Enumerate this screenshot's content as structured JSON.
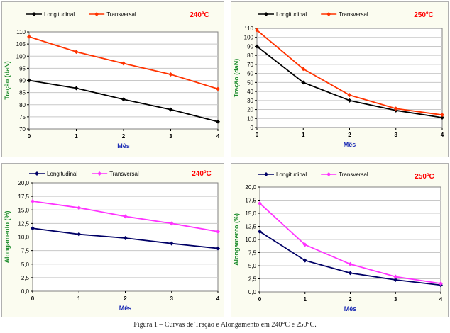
{
  "caption": "Figura 1 – Curvas de Tração e Alongamento em 240°C e 250°C.",
  "chart_data": [
    {
      "type": "line",
      "title": "240ºC",
      "xlabel": "Mês",
      "ylabel": "Tração (daN)",
      "x": [
        0,
        1,
        2,
        3,
        4
      ],
      "ylim": [
        70,
        110
      ],
      "ytick_step": 5,
      "ytick_labels": [
        "70",
        "75",
        "80",
        "85",
        "90",
        "95",
        "100",
        "105",
        "110"
      ],
      "xtick_labels": [
        "0",
        "1",
        "2",
        "3",
        "4"
      ],
      "grid": true,
      "legend": "top-left",
      "series": [
        {
          "name": "Longitudinal",
          "values": [
            90,
            86.8,
            82.2,
            78,
            73
          ],
          "color": "#000000",
          "marker": "diamond"
        },
        {
          "name": "Transversal",
          "values": [
            108,
            101.8,
            97,
            92.5,
            86.5
          ],
          "color": "#ff3300",
          "marker": "diamond"
        }
      ]
    },
    {
      "type": "line",
      "title": "250ºC",
      "xlabel": "Mês",
      "ylabel": "Tração (daN)",
      "x": [
        0,
        1,
        2,
        3,
        4
      ],
      "ylim": [
        0,
        110
      ],
      "ytick_step": 10,
      "ytick_labels": [
        "0",
        "10",
        "20",
        "30",
        "40",
        "50",
        "60",
        "70",
        "80",
        "90",
        "100",
        "110"
      ],
      "xtick_labels": [
        "0",
        "1",
        "2",
        "3",
        "4"
      ],
      "grid": true,
      "legend": "top-left",
      "series": [
        {
          "name": "Longitudinal",
          "values": [
            90,
            50,
            30,
            19,
            11
          ],
          "color": "#000000",
          "marker": "diamond"
        },
        {
          "name": "Transversal",
          "values": [
            108,
            65,
            36,
            21,
            14
          ],
          "color": "#ff3300",
          "marker": "diamond"
        }
      ]
    },
    {
      "type": "line",
      "title": "240ºC",
      "xlabel": "Mês",
      "ylabel": "Alongamento (%)",
      "x": [
        0,
        1,
        2,
        3,
        4
      ],
      "ylim": [
        0,
        20
      ],
      "ytick_step": 2.5,
      "ytick_labels": [
        "0,0",
        "2,5",
        "5,0",
        "7,5",
        "10,0",
        "12,5",
        "15,0",
        "17,5",
        "20,0"
      ],
      "xtick_labels": [
        "0",
        "1",
        "2",
        "3",
        "4"
      ],
      "grid": true,
      "legend": "top-left",
      "series": [
        {
          "name": "Longitudinal",
          "values": [
            11.6,
            10.5,
            9.8,
            8.8,
            7.9
          ],
          "color": "#000066",
          "marker": "diamond"
        },
        {
          "name": "Transversal",
          "values": [
            16.6,
            15.4,
            13.8,
            12.5,
            11
          ],
          "color": "#ff33ff",
          "marker": "diamond"
        }
      ]
    },
    {
      "type": "line",
      "title": "250ºC",
      "xlabel": "Mês",
      "ylabel": "Alongamento (%)",
      "x": [
        0,
        1,
        2,
        3,
        4
      ],
      "ylim": [
        0,
        20
      ],
      "ytick_step": 2.5,
      "ytick_labels": [
        "0,0",
        "2,5",
        "5,0",
        "7,5",
        "10,0",
        "12,5",
        "15,0",
        "17,5",
        "20,0"
      ],
      "xtick_labels": [
        "0",
        "1",
        "2",
        "3",
        "4"
      ],
      "grid": true,
      "legend": "top-left",
      "series": [
        {
          "name": "Longitudinal",
          "values": [
            11.5,
            6,
            3.6,
            2.3,
            1.3
          ],
          "color": "#000066",
          "marker": "diamond"
        },
        {
          "name": "Transversal",
          "values": [
            16.9,
            9,
            5.3,
            2.9,
            1.6
          ],
          "color": "#ff33ff",
          "marker": "diamond"
        }
      ]
    }
  ]
}
